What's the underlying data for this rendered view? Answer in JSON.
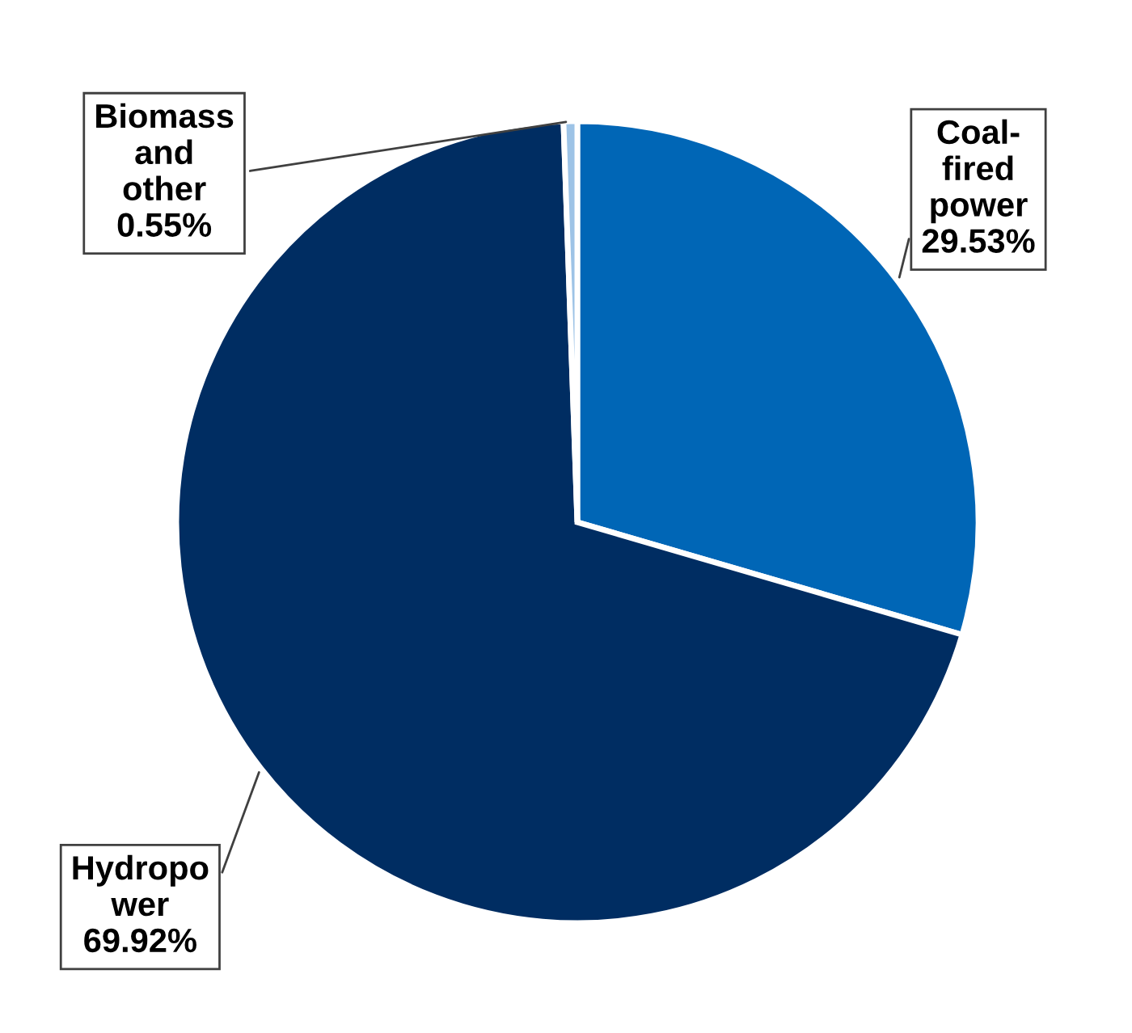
{
  "chart_data": {
    "type": "pie",
    "categories": [
      "Coal-fired power",
      "Hydropower",
      "Biomass and other"
    ],
    "values": [
      29.53,
      69.92,
      0.55
    ],
    "colors": [
      "#0066b6",
      "#002d62",
      "#9dc3e6"
    ],
    "value_labels": [
      "29.53%",
      "69.92%",
      "0.55%"
    ],
    "legend": false
  }
}
